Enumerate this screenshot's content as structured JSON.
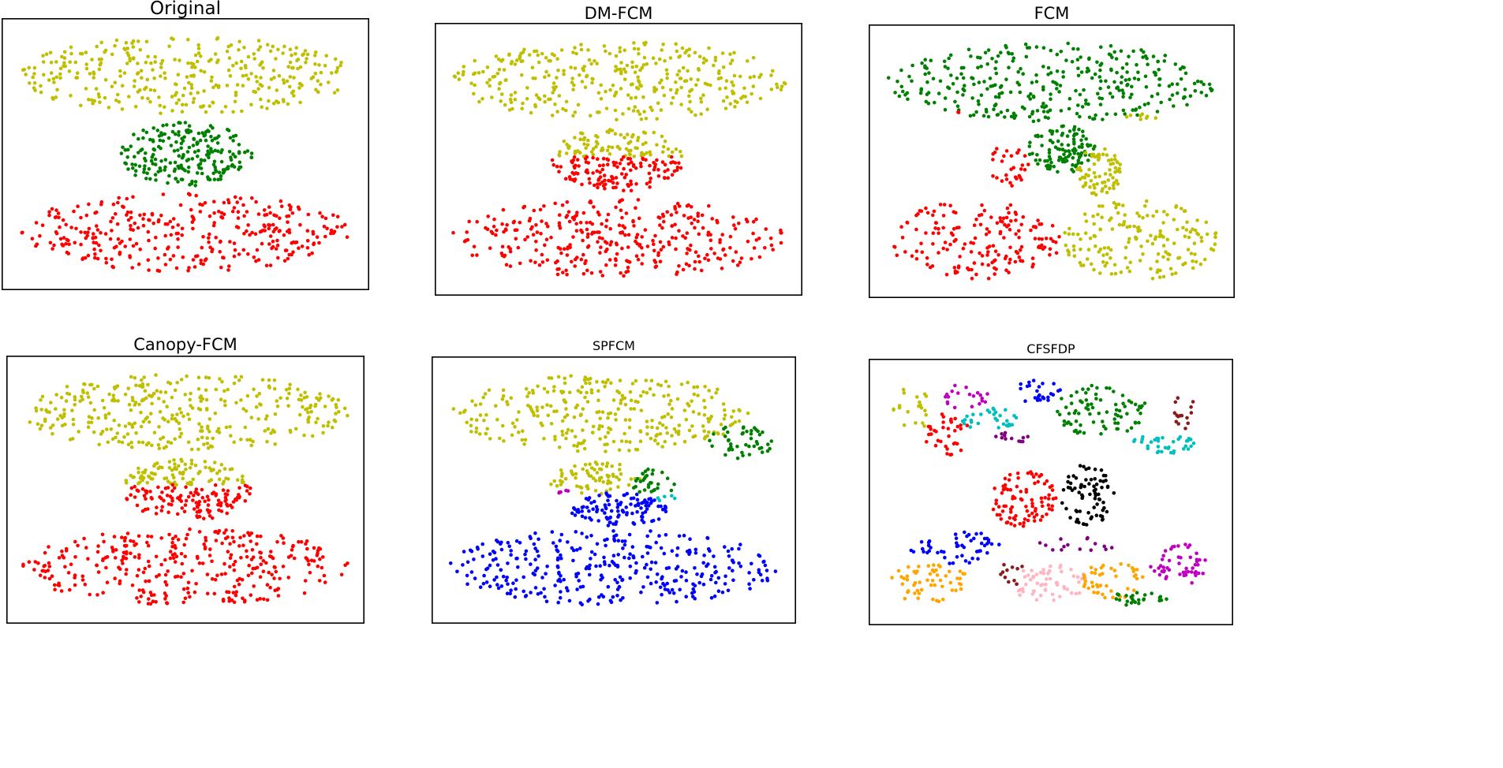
{
  "colors": {
    "y": "#bfbf00",
    "g": "#008000",
    "r": "#ff0000",
    "b": "#0000ff",
    "c": "#00bfbf",
    "m": "#bf00bf",
    "k": "#000000",
    "p": "#800080",
    "d": "#8b1a1a",
    "o": "#ffa500",
    "n": "#ffb6c1"
  },
  "chart_data": [
    {
      "type": "scatter",
      "title": "Original",
      "grid": false,
      "legend": "none",
      "clusters": [
        {
          "color": "y",
          "shape": "ellipse",
          "center": [
            0.5,
            0.82
          ],
          "radius": [
            0.5,
            0.16
          ],
          "count": 340
        },
        {
          "color": "g",
          "shape": "ellipse",
          "center": [
            0.5,
            0.5
          ],
          "radius": [
            0.2,
            0.13
          ],
          "count": 220
        },
        {
          "color": "r",
          "shape": "ellipse",
          "center": [
            0.5,
            0.18
          ],
          "radius": [
            0.5,
            0.16
          ],
          "count": 340
        }
      ]
    },
    {
      "type": "scatter",
      "title": "DM-FCM",
      "grid": false,
      "legend": "none",
      "clusters": [
        {
          "color": "y",
          "shape": "ellipse",
          "center": [
            0.5,
            0.82
          ],
          "radius": [
            0.5,
            0.16
          ],
          "count": 340
        },
        {
          "color": "y",
          "shape": "half",
          "center": [
            0.5,
            0.5
          ],
          "radius": [
            0.2,
            0.13
          ],
          "part": "upper",
          "split": 0.51,
          "count": 90
        },
        {
          "color": "r",
          "shape": "half",
          "center": [
            0.5,
            0.5
          ],
          "radius": [
            0.2,
            0.13
          ],
          "part": "lower",
          "split": 0.51,
          "count": 130
        },
        {
          "color": "r",
          "shape": "ellipse",
          "center": [
            0.5,
            0.18
          ],
          "radius": [
            0.5,
            0.16
          ],
          "count": 340
        }
      ]
    },
    {
      "type": "scatter",
      "title": "FCM",
      "grid": false,
      "legend": "none",
      "clusters": [
        {
          "color": "g",
          "shape": "ellipse",
          "center": [
            0.5,
            0.82
          ],
          "radius": [
            0.5,
            0.16
          ],
          "count": 330
        },
        {
          "color": "y",
          "shape": "ellipse",
          "center": [
            0.77,
            0.68
          ],
          "radius": [
            0.05,
            0.015
          ],
          "count": 8
        },
        {
          "color": "r",
          "shape": "ellipse",
          "center": [
            0.22,
            0.69
          ],
          "radius": [
            0.01,
            0.01
          ],
          "count": 2
        },
        {
          "color": "r",
          "shape": "ellipse",
          "center": [
            0.37,
            0.48
          ],
          "radius": [
            0.06,
            0.09
          ],
          "count": 30
        },
        {
          "color": "g",
          "shape": "ellipse",
          "center": [
            0.53,
            0.55
          ],
          "radius": [
            0.1,
            0.1
          ],
          "count": 110
        },
        {
          "color": "y",
          "shape": "ellipse",
          "center": [
            0.64,
            0.46
          ],
          "radius": [
            0.07,
            0.1
          ],
          "count": 70
        },
        {
          "color": "r",
          "shape": "ellipse",
          "center": [
            0.27,
            0.18
          ],
          "radius": [
            0.26,
            0.16
          ],
          "count": 170
        },
        {
          "color": "y",
          "shape": "ellipse",
          "center": [
            0.76,
            0.18
          ],
          "radius": [
            0.24,
            0.16
          ],
          "count": 170
        }
      ]
    },
    {
      "type": "scatter",
      "title": "Canopy-FCM",
      "grid": false,
      "legend": "none",
      "clusters": [
        {
          "color": "y",
          "shape": "ellipse",
          "center": [
            0.5,
            0.82
          ],
          "radius": [
            0.5,
            0.16
          ],
          "count": 340
        },
        {
          "color": "y",
          "shape": "half",
          "center": [
            0.5,
            0.5
          ],
          "radius": [
            0.2,
            0.13
          ],
          "part": "upper",
          "split": 0.52,
          "count": 95
        },
        {
          "color": "r",
          "shape": "half",
          "center": [
            0.5,
            0.5
          ],
          "radius": [
            0.2,
            0.13
          ],
          "part": "lower",
          "split": 0.52,
          "count": 125
        },
        {
          "color": "r",
          "shape": "ellipse",
          "center": [
            0.5,
            0.18
          ],
          "radius": [
            0.5,
            0.16
          ],
          "count": 340
        }
      ]
    },
    {
      "type": "scatter",
      "title": "SPFCM",
      "grid": false,
      "legend": "none",
      "clusters": [
        {
          "color": "y",
          "shape": "ellipse",
          "center": [
            0.46,
            0.82
          ],
          "radius": [
            0.45,
            0.16
          ],
          "count": 300
        },
        {
          "color": "g",
          "shape": "ellipse",
          "center": [
            0.88,
            0.7
          ],
          "radius": [
            0.1,
            0.07
          ],
          "count": 45
        },
        {
          "color": "y",
          "shape": "ellipse",
          "center": [
            0.44,
            0.55
          ],
          "radius": [
            0.14,
            0.07
          ],
          "count": 70
        },
        {
          "color": "g",
          "shape": "ellipse",
          "center": [
            0.62,
            0.53
          ],
          "radius": [
            0.07,
            0.06
          ],
          "count": 30
        },
        {
          "color": "m",
          "shape": "ellipse",
          "center": [
            0.35,
            0.49
          ],
          "radius": [
            0.03,
            0.01
          ],
          "count": 5
        },
        {
          "color": "c",
          "shape": "ellipse",
          "center": [
            0.66,
            0.47
          ],
          "radius": [
            0.04,
            0.02
          ],
          "count": 5
        },
        {
          "color": "b",
          "shape": "ellipse",
          "center": [
            0.52,
            0.42
          ],
          "radius": [
            0.15,
            0.07
          ],
          "count": 110
        },
        {
          "color": "b",
          "shape": "ellipse",
          "center": [
            0.5,
            0.18
          ],
          "radius": [
            0.5,
            0.16
          ],
          "count": 340
        }
      ]
    },
    {
      "type": "scatter",
      "title": "CFSFDP",
      "grid": false,
      "legend": "none",
      "clusters": [
        {
          "color": "y",
          "shape": "ellipse",
          "center": [
            0.08,
            0.85
          ],
          "radius": [
            0.06,
            0.1
          ],
          "count": 20
        },
        {
          "color": "r",
          "shape": "ellipse",
          "center": [
            0.19,
            0.74
          ],
          "radius": [
            0.07,
            0.09
          ],
          "count": 35
        },
        {
          "color": "m",
          "shape": "ellipse",
          "center": [
            0.24,
            0.9
          ],
          "radius": [
            0.07,
            0.06
          ],
          "count": 20
        },
        {
          "color": "c",
          "shape": "ellipse",
          "center": [
            0.32,
            0.8
          ],
          "radius": [
            0.09,
            0.05
          ],
          "count": 30
        },
        {
          "color": "p",
          "shape": "ellipse",
          "center": [
            0.38,
            0.73
          ],
          "radius": [
            0.08,
            0.03
          ],
          "count": 12
        },
        {
          "color": "b",
          "shape": "ellipse",
          "center": [
            0.46,
            0.92
          ],
          "radius": [
            0.07,
            0.05
          ],
          "count": 25
        },
        {
          "color": "g",
          "shape": "ellipse",
          "center": [
            0.65,
            0.84
          ],
          "radius": [
            0.14,
            0.11
          ],
          "count": 80
        },
        {
          "color": "d",
          "shape": "ellipse",
          "center": [
            0.9,
            0.83
          ],
          "radius": [
            0.04,
            0.07
          ],
          "count": 15
        },
        {
          "color": "c",
          "shape": "ellipse",
          "center": [
            0.84,
            0.7
          ],
          "radius": [
            0.1,
            0.04
          ],
          "count": 35
        },
        {
          "color": "r",
          "shape": "ellipse",
          "center": [
            0.42,
            0.47
          ],
          "radius": [
            0.1,
            0.12
          ],
          "count": 90
        },
        {
          "color": "k",
          "shape": "ellipse",
          "center": [
            0.61,
            0.49
          ],
          "radius": [
            0.08,
            0.13
          ],
          "count": 75
        },
        {
          "color": "b",
          "shape": "ellipse",
          "center": [
            0.21,
            0.27
          ],
          "radius": [
            0.14,
            0.07
          ],
          "count": 50
        },
        {
          "color": "o",
          "shape": "ellipse",
          "center": [
            0.13,
            0.12
          ],
          "radius": [
            0.13,
            0.08
          ],
          "count": 55
        },
        {
          "color": "d",
          "shape": "ellipse",
          "center": [
            0.38,
            0.17
          ],
          "radius": [
            0.05,
            0.06
          ],
          "count": 12
        },
        {
          "color": "n",
          "shape": "ellipse",
          "center": [
            0.5,
            0.12
          ],
          "radius": [
            0.12,
            0.08
          ],
          "count": 60
        },
        {
          "color": "p",
          "shape": "ellipse",
          "center": [
            0.58,
            0.28
          ],
          "radius": [
            0.12,
            0.03
          ],
          "count": 15
        },
        {
          "color": "o",
          "shape": "ellipse",
          "center": [
            0.68,
            0.13
          ],
          "radius": [
            0.1,
            0.08
          ],
          "count": 45
        },
        {
          "color": "g",
          "shape": "ellipse",
          "center": [
            0.77,
            0.06
          ],
          "radius": [
            0.08,
            0.04
          ],
          "count": 25
        },
        {
          "color": "m",
          "shape": "ellipse",
          "center": [
            0.89,
            0.2
          ],
          "radius": [
            0.09,
            0.09
          ],
          "count": 50
        }
      ]
    }
  ]
}
